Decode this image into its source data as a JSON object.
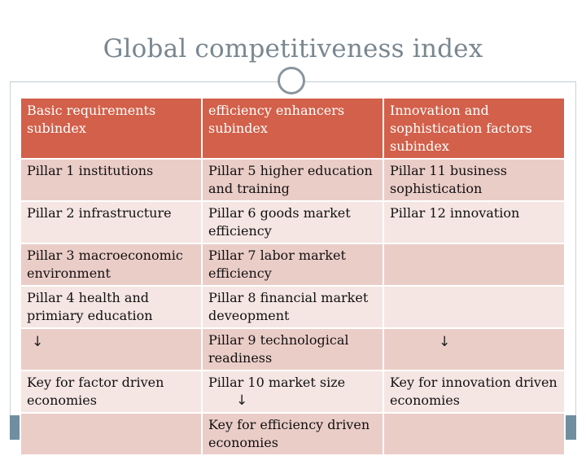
{
  "slide": {
    "title": "Global competitiveness index"
  },
  "table": {
    "headers": [
      "Basic requirements subindex",
      "efficiency enhancers subindex",
      "Innovation  and sophistication  factors subindex"
    ],
    "rows": [
      [
        "Pillar 1 institutions",
        "Pillar 5 higher education and training",
        "Pillar 11 business sophistication"
      ],
      [
        "Pillar 2 infrastructure",
        "Pillar 6 goods market efficiency",
        "Pillar 12 innovation"
      ],
      [
        "Pillar 3 macroeconomic environment",
        "Pillar 7 labor market efficiency",
        ""
      ],
      [
        "Pillar 4 health and primiary education",
        "Pillar 8 financial market deveopment",
        ""
      ],
      [
        "",
        "Pillar 9 technological readiness",
        ""
      ],
      [
        "Key for factor driven economies",
        "Pillar 10 market size",
        "Key for innovation driven economies"
      ],
      [
        "",
        "Key for efficiency driven economies",
        ""
      ]
    ],
    "arrow_glyph": "↓"
  },
  "colors": {
    "header_bg": "#d2604a",
    "row_dark": "#ebcdc8",
    "row_light": "#f5e6e3",
    "title_text": "#7a8790",
    "bottom_band": "#6f8ea0"
  },
  "icons": [
    "circle-ornament-icon",
    "down-arrow-icon"
  ]
}
